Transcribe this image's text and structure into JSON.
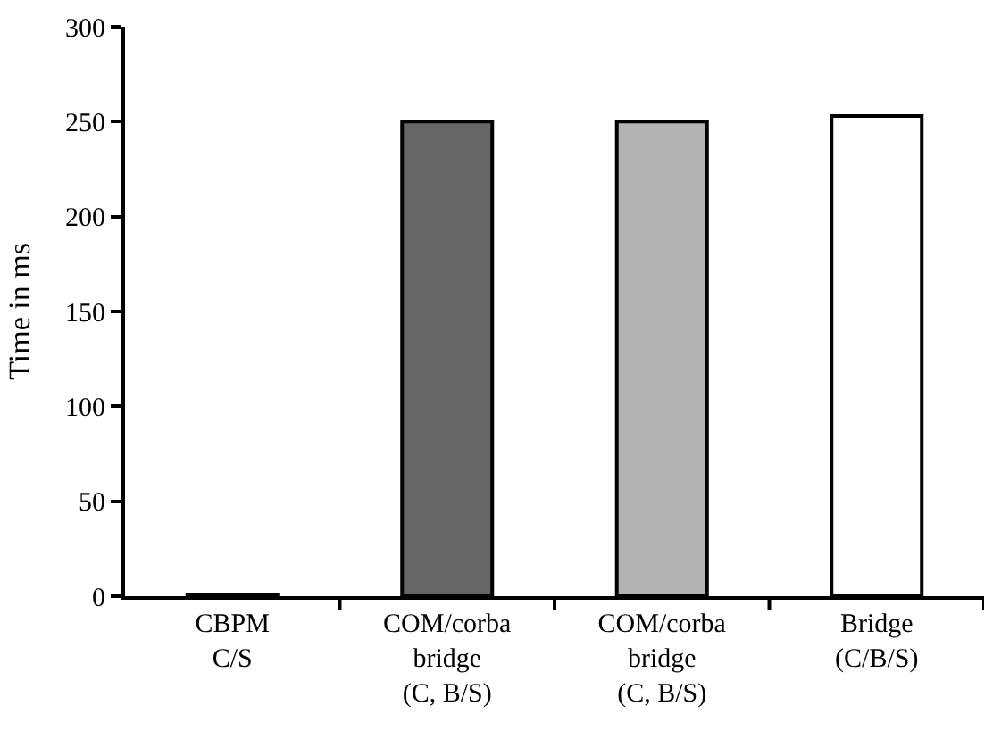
{
  "chart_data": {
    "type": "bar",
    "ylabel": "Time in ms",
    "categories": [
      "CBPM\nC/S",
      "COM/corba\nbridge\n(C, B/S)",
      "COM/corba\nbridge\n(C, B/S)",
      "Bridge\n(C/B/S)"
    ],
    "values": [
      1,
      250,
      250,
      253
    ],
    "colors": [
      "#ffffff",
      "#666666",
      "#b3b3b3",
      "#ffffff"
    ],
    "ylim": [
      0,
      300
    ],
    "yticks": [
      0,
      50,
      100,
      150,
      200,
      250,
      300
    ]
  }
}
